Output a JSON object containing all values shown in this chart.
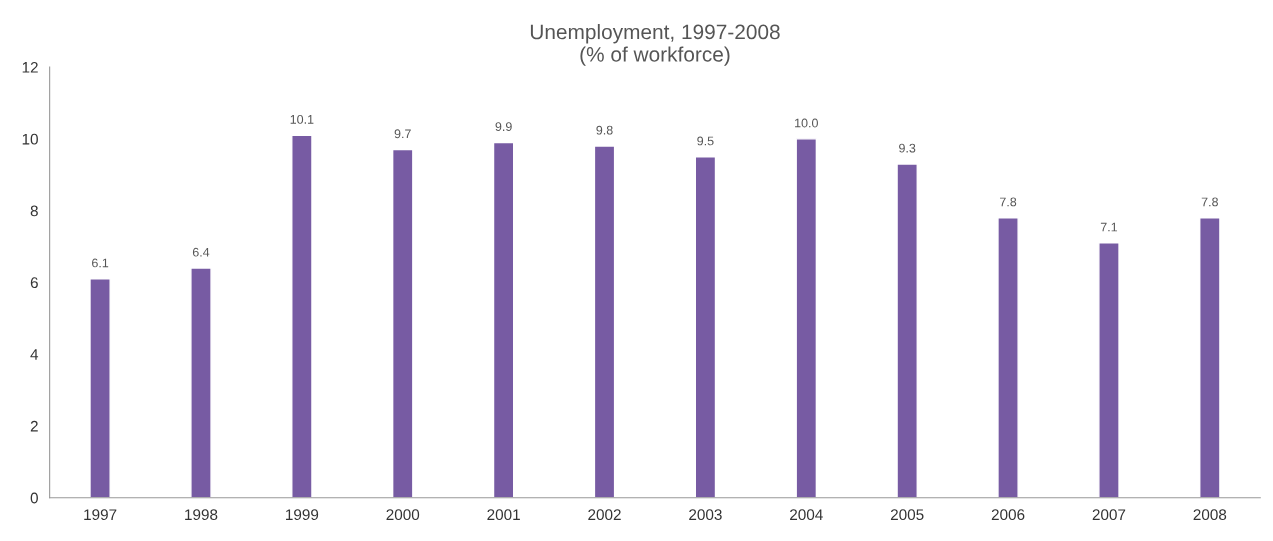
{
  "chart_data": {
    "type": "bar",
    "title": "Unemployment, 1997-2008\n(% of workforce)",
    "categories": [
      "1997",
      "1998",
      "1999",
      "2000",
      "2001",
      "2002",
      "2003",
      "2004",
      "2005",
      "2006",
      "2007",
      "2008"
    ],
    "values": [
      6.1,
      6.4,
      10.1,
      9.7,
      9.9,
      9.8,
      9.5,
      10.0,
      9.3,
      7.8,
      7.1,
      7.8
    ],
    "value_labels": [
      "6.1",
      "6.4",
      "10.1",
      "9.7",
      "9.9",
      "9.8",
      "9.5",
      "10.0",
      "9.3",
      "7.8",
      "7.1",
      "7.8"
    ],
    "color": "#775ba3",
    "ylim": [
      0,
      12
    ],
    "yticks": [
      0,
      2,
      4,
      6,
      8,
      10,
      12
    ],
    "grid": false,
    "legend": false
  }
}
